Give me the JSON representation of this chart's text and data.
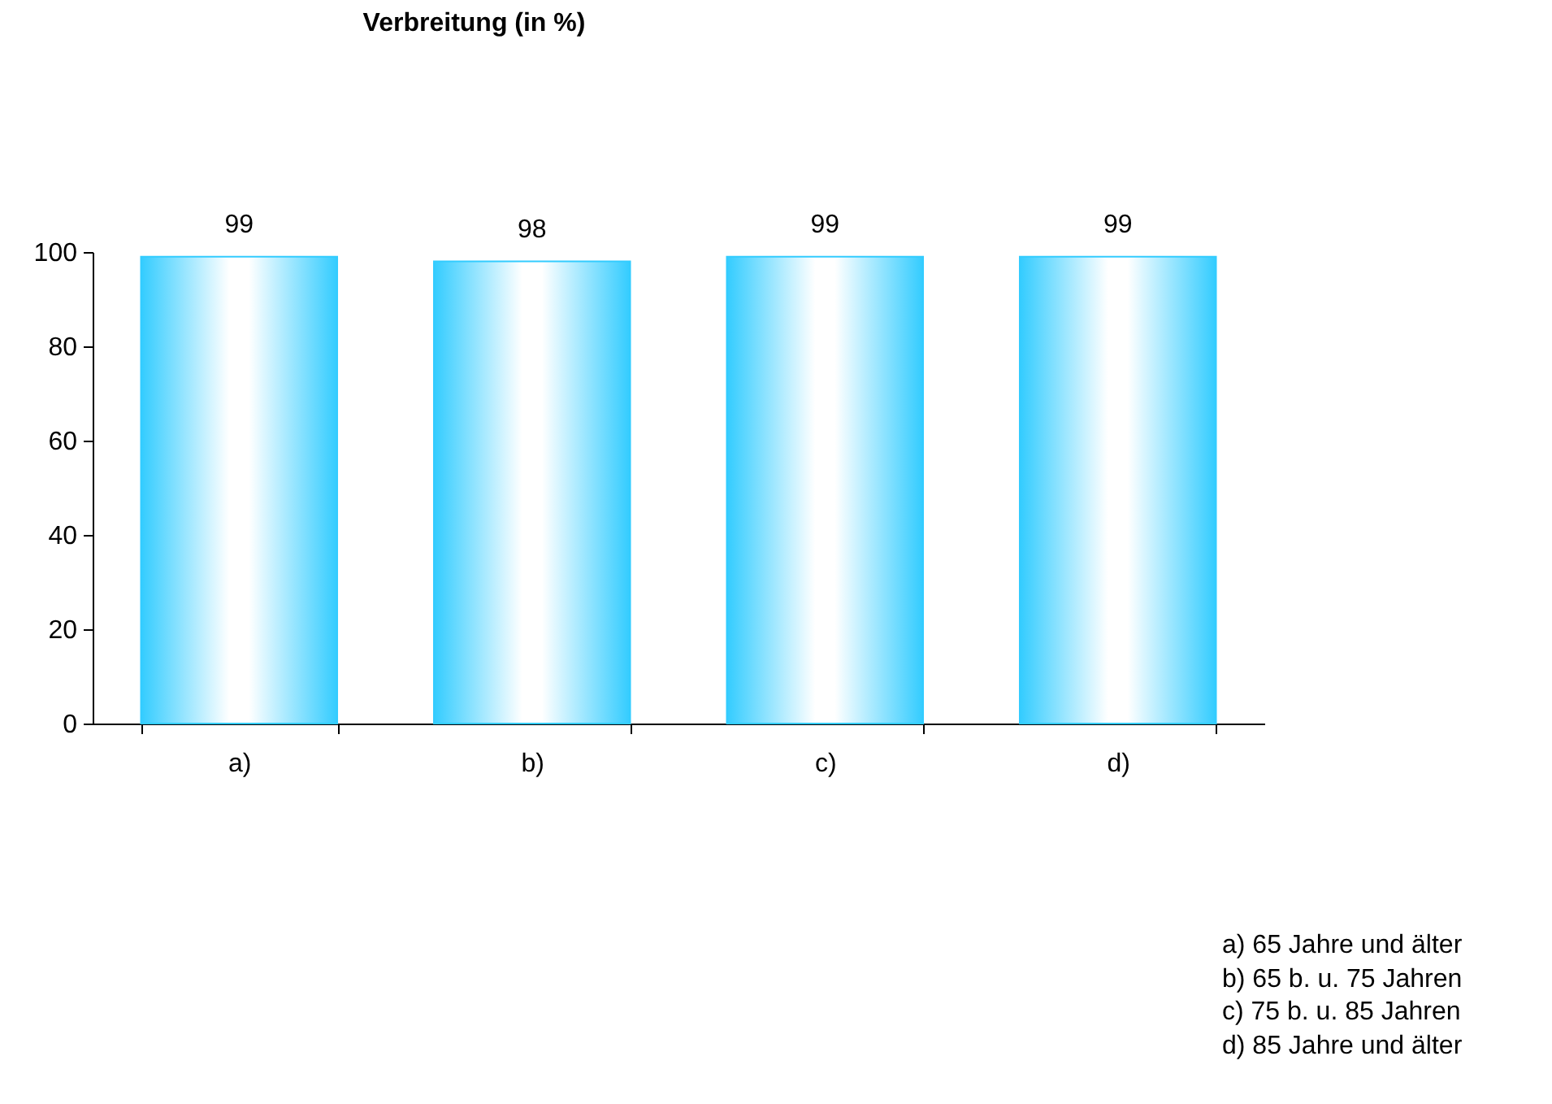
{
  "chart_data": {
    "type": "bar",
    "title": "Verbreitung (in %)",
    "categories": [
      "a)",
      "b)",
      "c)",
      "d)"
    ],
    "values": [
      99,
      98,
      99,
      99
    ],
    "color": "#33ccff",
    "ylim": [
      0,
      100
    ],
    "yticks": [
      0,
      20,
      40,
      60,
      80,
      100
    ],
    "data_labels": true,
    "annotations": [
      "a) 65 Jahre und älter",
      "b) 65 b. u. 75 Jahren",
      "c) 75 b. u. 85 Jahren",
      "d) 85 Jahre und älter"
    ]
  }
}
